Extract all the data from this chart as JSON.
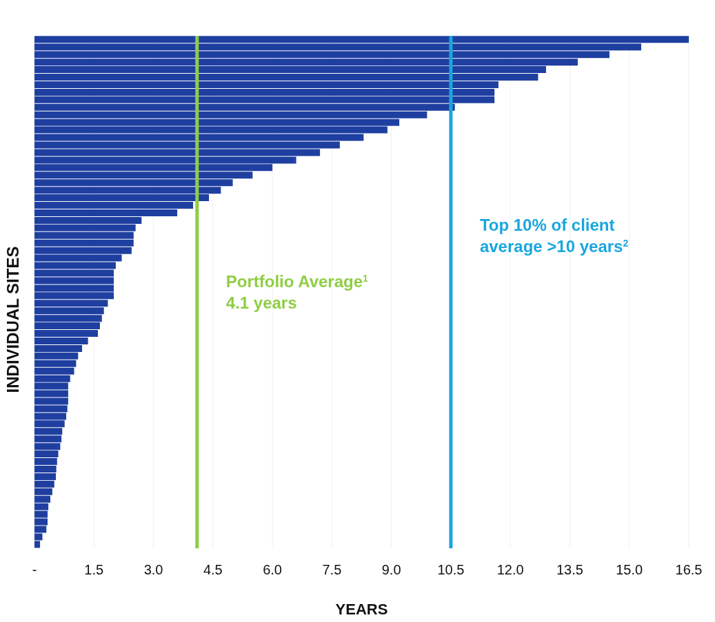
{
  "chart_data": {
    "type": "bar",
    "orientation": "horizontal",
    "xlabel": "YEARS",
    "ylabel": "INDIVIDUAL  SITES",
    "categories": [
      null,
      null,
      null,
      null,
      null,
      null,
      null,
      null,
      null,
      null,
      null,
      null,
      null,
      null,
      null,
      null,
      null,
      null,
      null,
      null,
      null,
      null,
      null,
      null,
      null,
      null,
      null,
      null,
      null,
      null,
      null,
      null,
      null,
      null,
      null,
      null,
      null,
      null,
      null,
      null,
      null,
      null,
      null,
      null,
      null,
      null,
      null,
      null,
      null,
      null,
      null,
      null,
      null,
      null,
      null,
      null,
      null,
      null,
      null,
      null,
      null,
      null,
      null,
      null,
      null,
      null,
      null,
      null
    ],
    "values": [
      16.5,
      15.3,
      14.5,
      13.7,
      12.9,
      12.7,
      11.7,
      11.6,
      11.6,
      10.6,
      9.9,
      9.2,
      8.9,
      8.3,
      7.7,
      7.2,
      6.6,
      6.0,
      5.5,
      5.0,
      4.7,
      4.4,
      4.0,
      3.6,
      2.7,
      2.55,
      2.5,
      2.5,
      2.45,
      2.2,
      2.05,
      2.0,
      2.0,
      2.0,
      2.0,
      1.85,
      1.75,
      1.7,
      1.65,
      1.6,
      1.35,
      1.2,
      1.1,
      1.05,
      1.0,
      0.9,
      0.85,
      0.85,
      0.85,
      0.83,
      0.8,
      0.76,
      0.7,
      0.68,
      0.65,
      0.6,
      0.57,
      0.55,
      0.54,
      0.5,
      0.45,
      0.4,
      0.35,
      0.33,
      0.33,
      0.3,
      0.2,
      0.14
    ],
    "color": "#1f3fa0",
    "xlim": [
      0,
      16.5
    ],
    "xticks": [
      {
        "value": 0,
        "label": "-"
      },
      1.5,
      {
        "value": 3,
        "label": "3.0"
      },
      4.5,
      {
        "value": 6,
        "label": "6.0"
      },
      7.5,
      {
        "value": 9,
        "label": "9.0"
      },
      10.5,
      {
        "value": 12,
        "label": "12.0"
      },
      13.5,
      {
        "value": 15,
        "label": "15.0"
      },
      16.5
    ],
    "grid": "x",
    "ref_lines": [
      {
        "axis": "x",
        "value": 4.1,
        "label": "Portfolio Average$^{1}$\n4.1 years",
        "color": "#8fce45"
      },
      {
        "axis": "x",
        "value": 10.5,
        "label": "Top 10% of client\naverage >10 years$^{2}$",
        "color": "#19a6df"
      }
    ]
  }
}
